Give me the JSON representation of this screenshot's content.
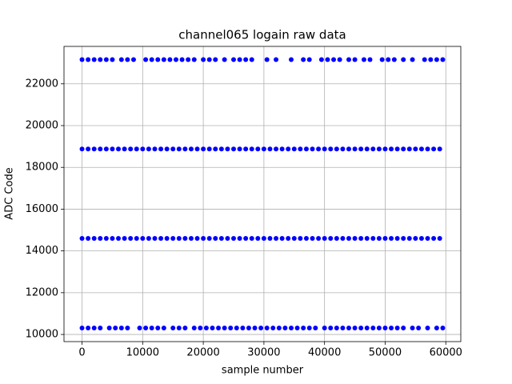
{
  "chart_data": {
    "type": "scatter",
    "title": "channel065 logain raw data",
    "x_label": "sample number",
    "y_label": "ADC Code",
    "xlim": [
      -2975,
      62475
    ],
    "ylim": [
      9658,
      23792
    ],
    "xticks": [
      0,
      10000,
      20000,
      30000,
      40000,
      50000,
      60000
    ],
    "yticks": [
      10000,
      12000,
      14000,
      16000,
      18000,
      20000,
      22000
    ],
    "grid": true,
    "series": [
      {
        "color": "#0000ff",
        "x": [
          0,
          1000,
          2000,
          3000,
          4000,
          5000,
          6500,
          7500,
          8500,
          10500,
          11500,
          12500,
          13500,
          14500,
          15500,
          16500,
          17500,
          18500,
          20000,
          21000,
          22000,
          23500,
          25000,
          26000,
          27000,
          28000,
          30500,
          32000,
          34500,
          36500,
          37500,
          39500,
          40500,
          41500,
          42500,
          44000,
          45000,
          46500,
          47500,
          49500,
          50500,
          51500,
          53000,
          54500,
          56500,
          57500,
          58500,
          59500
        ],
        "values": [
          23160,
          23160,
          23160,
          23160,
          23160,
          23160,
          23160,
          23160,
          23160,
          23160,
          23160,
          23160,
          23160,
          23160,
          23160,
          23160,
          23160,
          23160,
          23160,
          23160,
          23160,
          23160,
          23160,
          23160,
          23160,
          23160,
          23160,
          23160,
          23160,
          23160,
          23160,
          23160,
          23160,
          23160,
          23160,
          23160,
          23160,
          23160,
          23160,
          23160,
          23160,
          23160,
          23160,
          23160,
          23160,
          23160,
          23160,
          23160
        ]
      },
      {
        "color": "#0000ff",
        "x": [
          0,
          1000,
          2000,
          3000,
          4000,
          5000,
          6000,
          7000,
          8000,
          9000,
          10000,
          11000,
          12000,
          13000,
          14000,
          15000,
          16000,
          17000,
          18000,
          19000,
          20000,
          21000,
          22000,
          23000,
          24000,
          25000,
          26000,
          27000,
          28000,
          29000,
          30000,
          31000,
          32000,
          33000,
          34000,
          35000,
          36000,
          37000,
          38000,
          39000,
          40000,
          41000,
          42000,
          43000,
          44000,
          45000,
          46000,
          47000,
          48000,
          49000,
          50000,
          51000,
          52000,
          53000,
          54000,
          55000,
          56000,
          57000,
          58000,
          59000
        ],
        "values": [
          18880,
          18880,
          18880,
          18880,
          18880,
          18880,
          18880,
          18880,
          18880,
          18880,
          18880,
          18880,
          18880,
          18880,
          18880,
          18880,
          18880,
          18880,
          18880,
          18880,
          18880,
          18880,
          18880,
          18880,
          18880,
          18880,
          18880,
          18880,
          18880,
          18880,
          18880,
          18880,
          18880,
          18880,
          18880,
          18880,
          18880,
          18880,
          18880,
          18880,
          18880,
          18880,
          18880,
          18880,
          18880,
          18880,
          18880,
          18880,
          18880,
          18880,
          18880,
          18880,
          18880,
          18880,
          18880,
          18880,
          18880,
          18880,
          18880,
          18880
        ]
      },
      {
        "color": "#0000ff",
        "x": [
          0,
          1000,
          2000,
          3000,
          4000,
          5000,
          6000,
          7000,
          8000,
          9000,
          10000,
          11000,
          12000,
          13000,
          14000,
          15000,
          16000,
          17000,
          18000,
          19000,
          20000,
          21000,
          22000,
          23000,
          24000,
          25000,
          26000,
          27000,
          28000,
          29000,
          30000,
          31000,
          32000,
          33000,
          34000,
          35000,
          36000,
          37000,
          38000,
          39000,
          40000,
          41000,
          42000,
          43000,
          44000,
          45000,
          46000,
          47000,
          48000,
          49000,
          50000,
          51000,
          52000,
          53000,
          54000,
          55000,
          56000,
          57000,
          58000,
          59000
        ],
        "values": [
          14600,
          14600,
          14600,
          14600,
          14600,
          14600,
          14600,
          14600,
          14600,
          14600,
          14600,
          14600,
          14600,
          14600,
          14600,
          14600,
          14600,
          14600,
          14600,
          14600,
          14600,
          14600,
          14600,
          14600,
          14600,
          14600,
          14600,
          14600,
          14600,
          14600,
          14600,
          14600,
          14600,
          14600,
          14600,
          14600,
          14600,
          14600,
          14600,
          14600,
          14600,
          14600,
          14600,
          14600,
          14600,
          14600,
          14600,
          14600,
          14600,
          14600,
          14600,
          14600,
          14600,
          14600,
          14600,
          14600,
          14600,
          14600,
          14600,
          14600
        ]
      },
      {
        "color": "#0000ff",
        "x": [
          0,
          1000,
          2000,
          3000,
          4500,
          5500,
          6500,
          7500,
          9500,
          10500,
          11500,
          12500,
          13500,
          15000,
          16000,
          17000,
          18500,
          19500,
          20500,
          21500,
          22500,
          23500,
          24500,
          25500,
          26500,
          27500,
          28500,
          29500,
          30500,
          31500,
          32500,
          33500,
          34500,
          35500,
          36500,
          37500,
          38500,
          40000,
          41000,
          42000,
          43000,
          44000,
          45000,
          46000,
          47000,
          48000,
          49000,
          50000,
          51000,
          52000,
          53000,
          54500,
          55500,
          57000,
          58500,
          59500
        ],
        "values": [
          10310,
          10310,
          10310,
          10310,
          10310,
          10310,
          10310,
          10310,
          10310,
          10310,
          10310,
          10310,
          10310,
          10310,
          10310,
          10310,
          10310,
          10310,
          10310,
          10310,
          10310,
          10310,
          10310,
          10310,
          10310,
          10310,
          10310,
          10310,
          10310,
          10310,
          10310,
          10310,
          10310,
          10310,
          10310,
          10310,
          10310,
          10310,
          10310,
          10310,
          10310,
          10310,
          10310,
          10310,
          10310,
          10310,
          10310,
          10310,
          10310,
          10310,
          10310,
          10310,
          10310,
          10310,
          10310,
          10310
        ]
      }
    ]
  }
}
